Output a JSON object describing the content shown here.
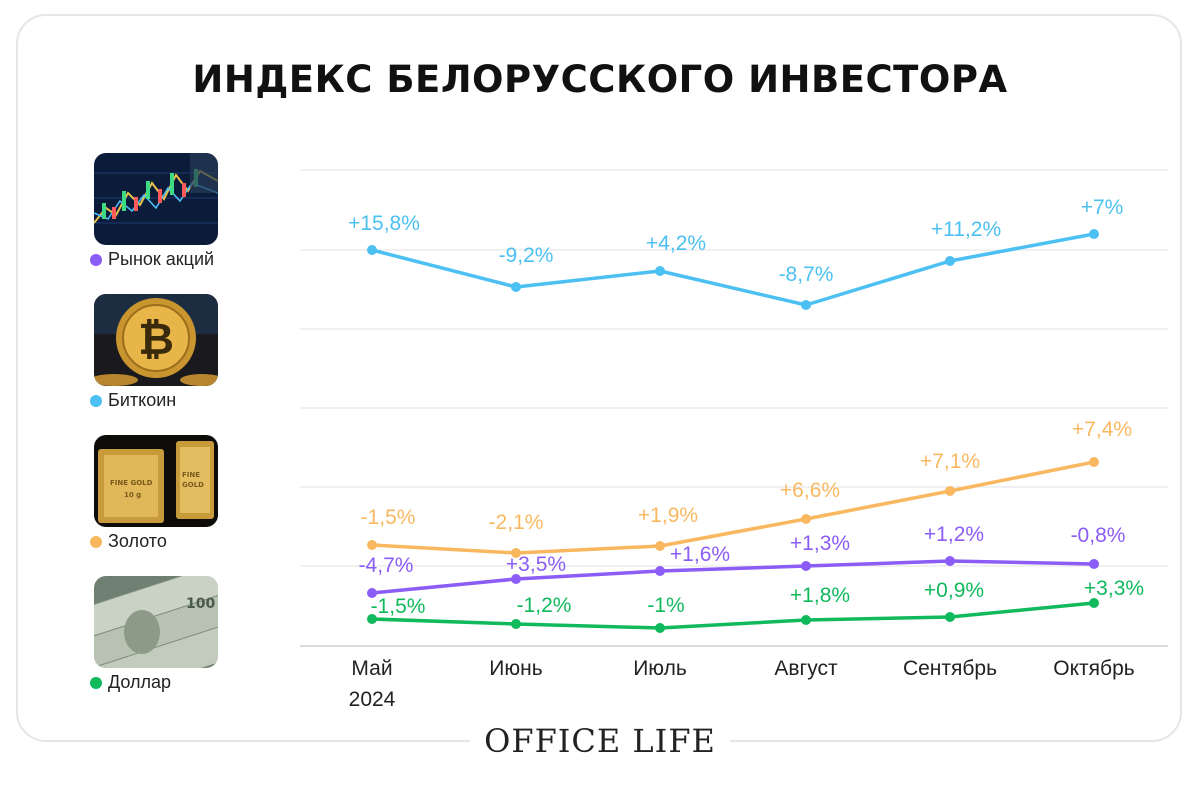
{
  "title": "ИНДЕКС БЕЛОРУССКОГО ИНВЕСТОРА",
  "brand": "OFFICE LIFE",
  "legend": [
    {
      "name": "Рынок акций",
      "color": "#8b5cf6",
      "icon": "stock-chart-image"
    },
    {
      "name": "Биткоин",
      "color": "#4cc0f2",
      "icon": "bitcoin-coin-image"
    },
    {
      "name": "Золото",
      "color": "#f9b860",
      "icon": "gold-bars-image"
    },
    {
      "name": "Доллар",
      "color": "#10b95c",
      "icon": "dollar-bills-image"
    }
  ],
  "chart_data": {
    "type": "line",
    "categories": [
      "Май\n2024",
      "Июнь",
      "Июль",
      "Август",
      "Сентябрь",
      "Октябрь"
    ],
    "grid": true,
    "series": [
      {
        "name": "Биткоин",
        "color": "#4cc0f2",
        "labels": [
          "+15,8%",
          "-9,2%",
          "+4,2%",
          "-8,7%",
          "+11,2%",
          "+7%"
        ]
      },
      {
        "name": "Золото",
        "color": "#f9b860",
        "labels": [
          "-1,5%",
          "-2,1%",
          "+1,9%",
          "+6,6%",
          "+7,1%",
          "+7,4%"
        ]
      },
      {
        "name": "Рынок акций",
        "color": "#8b5cf6",
        "labels": [
          "-4,7%",
          "+3,5%",
          "+1,6%",
          "+1,3%",
          "+1,2%",
          "-0,8%"
        ]
      },
      {
        "name": "Доллар",
        "color": "#10b95c",
        "labels": [
          "-1,5%",
          "-1,2%",
          "-1%",
          "+1,8%",
          "+0,9%",
          "+3,3%"
        ]
      }
    ]
  }
}
